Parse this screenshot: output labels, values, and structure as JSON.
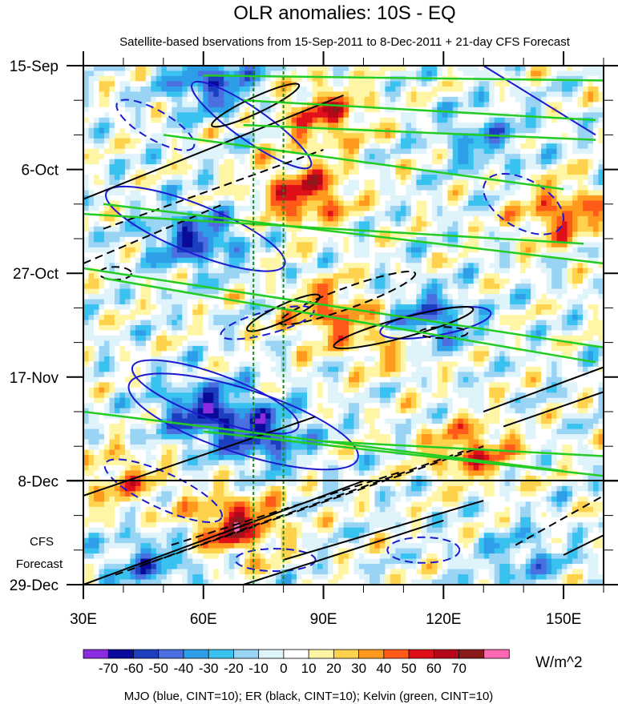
{
  "chart_data": {
    "type": "heatmap",
    "title": "OLR anomalies: 10S - EQ",
    "subtitle": "Satellite-based bservations from 15-Sep-2011 to 8-Dec-2011 + 21-day CFS Forecast",
    "xlabel": "",
    "ylabel": "",
    "x_ticks": [
      "30E",
      "60E",
      "90E",
      "120E",
      "150E"
    ],
    "x_tick_values": [
      30,
      60,
      90,
      120,
      150
    ],
    "xlim": [
      30,
      160
    ],
    "y_ticks": [
      "15-Sep",
      "6-Oct",
      "27-Oct",
      "17-Nov",
      "8-Dec",
      "29-Dec"
    ],
    "y_tick_days": [
      0,
      21,
      42,
      63,
      84,
      105
    ],
    "ylim_days": [
      0,
      105
    ],
    "forecast_start": "8-Dec",
    "forecast_label_line1": "CFS",
    "forecast_label_line2": "Forecast",
    "reference_lines_lon": [
      72.5,
      80
    ],
    "colorbar": {
      "levels": [
        "-70",
        "-60",
        "-50",
        "-40",
        "-30",
        "-20",
        "-10",
        "0",
        "10",
        "20",
        "30",
        "40",
        "50",
        "60",
        "70"
      ],
      "colors": [
        "#8a2be2",
        "#0a0a9a",
        "#1c3fc0",
        "#4a6fe0",
        "#2e9ee8",
        "#39c2f0",
        "#9ad4f5",
        "#dff3fb",
        "#ffffff",
        "#fff6a5",
        "#ffd24d",
        "#ff9a1f",
        "#ff5a1a",
        "#e0101a",
        "#b4071a",
        "#8b1a1a",
        "#ff69b4"
      ],
      "units": "W/m^2"
    },
    "contour_legend": "MJO (blue, CINT=10); ER (black, CINT=10); Kelvin (green, CINT=10)",
    "contour_colors": {
      "MJO": "#1a1ad0",
      "ER": "#000000",
      "Kelvin": "#22cc22"
    },
    "features": [
      {
        "kind": "positive",
        "lon": 68,
        "day": 93,
        "value": 60
      },
      {
        "kind": "positive",
        "lon": 85,
        "day": 26,
        "value": 55
      },
      {
        "kind": "positive",
        "lon": 90,
        "day": 10,
        "value": 45
      },
      {
        "kind": "positive",
        "lon": 150,
        "day": 30,
        "value": 45
      },
      {
        "kind": "positive",
        "lon": 127,
        "day": 78,
        "value": 45
      },
      {
        "kind": "positive",
        "lon": 108,
        "day": 56,
        "value": 35
      },
      {
        "kind": "positive",
        "lon": 92,
        "day": 50,
        "value": 40
      },
      {
        "kind": "positive",
        "lon": 40,
        "day": 84,
        "value": 30
      },
      {
        "kind": "negative",
        "lon": 60,
        "day": 70,
        "value": -55
      },
      {
        "kind": "negative",
        "lon": 75,
        "day": 75,
        "value": -50
      },
      {
        "kind": "negative",
        "lon": 58,
        "day": 35,
        "value": -50
      },
      {
        "kind": "negative",
        "lon": 115,
        "day": 52,
        "value": -55
      },
      {
        "kind": "negative",
        "lon": 62,
        "day": 3,
        "value": -50
      },
      {
        "kind": "negative",
        "lon": 47,
        "day": 101,
        "value": -35
      },
      {
        "kind": "negative",
        "lon": 140,
        "day": 100,
        "value": -25
      },
      {
        "kind": "negative",
        "lon": 130,
        "day": 15,
        "value": -30
      }
    ]
  }
}
